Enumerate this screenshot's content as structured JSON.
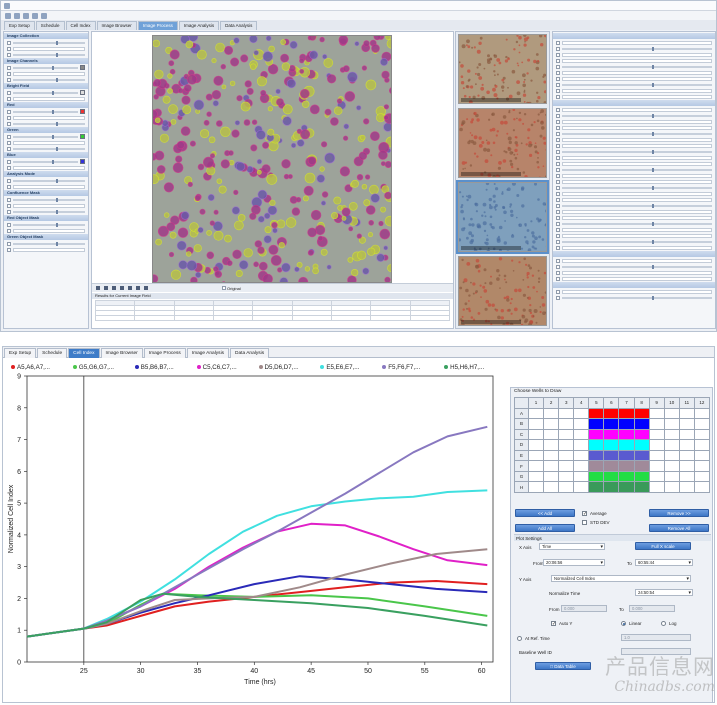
{
  "top_window": {
    "tabs": [
      "Exp Setup",
      "Schedule",
      "Cell Index",
      "Image Browser",
      "Image Process",
      "Image Analysis",
      "Data Analysis"
    ],
    "active_tab": 4,
    "left_panel": {
      "sections": [
        "Image Collection",
        "Image Channels",
        "Bright Field",
        "Red",
        "Green",
        "Blue",
        "Analysis Mode",
        "Confluence Mask",
        "Red Object Mask",
        "Green Object Mask"
      ]
    },
    "thumbnails": [
      {
        "color": "#b09a7e"
      },
      {
        "color": "#b7846a"
      },
      {
        "color": "#7fa0bd"
      },
      {
        "color": "#b18869"
      }
    ],
    "original_label": "Original",
    "table_header": "Results for Current Image Field"
  },
  "bottom_window": {
    "tabs": [
      "Exp Setup",
      "Schedule",
      "Cell Index",
      "Image Browser",
      "Image Process",
      "Image Analysis",
      "Data Analysis"
    ],
    "active_tab": 2,
    "legend": [
      {
        "label": "A5,A6,A7,...",
        "color": "#e02020"
      },
      {
        "label": "G5,G6,G7,...",
        "color": "#4ac64a"
      },
      {
        "label": "B5,B6,B7,...",
        "color": "#2a2ab8"
      },
      {
        "label": "C5,C6,C7,...",
        "color": "#e020c8"
      },
      {
        "label": "D5,D6,D7,...",
        "color": "#a08a8a"
      },
      {
        "label": "E5,E6,E7,...",
        "color": "#40e0e0"
      },
      {
        "label": "F5,F6,F7,...",
        "color": "#8878c0"
      },
      {
        "label": "H5,H6,H7,...",
        "color": "#3aa060"
      }
    ],
    "side": {
      "choose_title": "Choose Wells to Draw",
      "columns": [
        "1",
        "2",
        "3",
        "4",
        "5",
        "6",
        "7",
        "8",
        "9",
        "10",
        "11",
        "12"
      ],
      "rows": [
        "A",
        "B",
        "C",
        "D",
        "E",
        "F",
        "G",
        "H"
      ],
      "row_colors": [
        "#ff0000",
        "#0000ff",
        "#ff00ff",
        "#00ffff",
        "#5a5ad0",
        "#a08a9a",
        "#22dd44",
        "#3a9a5a"
      ],
      "add_label": "<< Add",
      "add_all_label": "Add All",
      "remove_label": "Remove >>",
      "remove_all_label": "Remove All",
      "average_label": "Average",
      "std_dev_label": "STD DEV",
      "plot_settings": "Plot Settings",
      "x_axis_label": "X Axis",
      "x_axis_value": "Time",
      "full_x_scale": "Full X scale",
      "from_label": "From",
      "from_value": "20:06:56",
      "to_label": "To",
      "to_value": "60:55:44",
      "y_axis_label": "Y Axis",
      "y_axis_value": "Normalized Cell Index",
      "normalize_time_label": "Normalize Time",
      "normalize_time_value": "24:50:54",
      "y_from_value": "0.000",
      "y_to_value": "0.000",
      "auto_y_label": "Auto Y",
      "linear_label": "Linear",
      "log_label": "Log",
      "at_ref_time_label": "At Ref. Time",
      "ref_value": "1.0",
      "baseline_well_label": "Baseline Well ID",
      "data_table_label": "Data Table"
    }
  },
  "chart_data": {
    "type": "line",
    "xlabel": "Time (hrs)",
    "ylabel": "Normalized Cell Index",
    "xlim": [
      20,
      61
    ],
    "ylim": [
      0,
      9
    ],
    "xticks": [
      25,
      30,
      35,
      40,
      45,
      50,
      55,
      60
    ],
    "yticks": [
      0,
      1,
      2,
      3,
      4,
      5,
      6,
      7,
      8,
      9
    ],
    "reference_x": 25,
    "series": [
      {
        "name": "A5,A6,A7,...",
        "color": "#e02020",
        "x": [
          20,
          22,
          25,
          27,
          30,
          33,
          36,
          40,
          44,
          48,
          52,
          56,
          60.5
        ],
        "y": [
          0.8,
          0.9,
          1.05,
          1.15,
          1.45,
          1.75,
          1.9,
          2.05,
          2.2,
          2.35,
          2.5,
          2.55,
          2.45
        ]
      },
      {
        "name": "G5,G6,G7,...",
        "color": "#4ac64a",
        "x": [
          20,
          22,
          25,
          27,
          30,
          32,
          35,
          40,
          45,
          50,
          55,
          60.5
        ],
        "y": [
          0.8,
          0.9,
          1.05,
          1.2,
          1.8,
          2.15,
          2.1,
          2.05,
          2.1,
          2.0,
          1.75,
          1.45
        ]
      },
      {
        "name": "B5,B6,B7,...",
        "color": "#2a2ab8",
        "x": [
          20,
          22,
          25,
          27,
          30,
          33,
          36,
          40,
          44,
          48,
          52,
          56,
          60.5
        ],
        "y": [
          0.8,
          0.9,
          1.05,
          1.2,
          1.55,
          1.85,
          2.1,
          2.45,
          2.7,
          2.6,
          2.45,
          2.3,
          2.2
        ]
      },
      {
        "name": "C5,C6,C7,...",
        "color": "#e020c8",
        "x": [
          20,
          22,
          25,
          27,
          30,
          33,
          36,
          39,
          42,
          45,
          48,
          51,
          54,
          57,
          60.5
        ],
        "y": [
          0.8,
          0.9,
          1.05,
          1.3,
          1.75,
          2.3,
          3.0,
          3.6,
          4.1,
          4.35,
          4.3,
          3.95,
          3.55,
          3.2,
          3.05
        ]
      },
      {
        "name": "D5,D6,D7,...",
        "color": "#a08a8a",
        "x": [
          20,
          22,
          25,
          27,
          30,
          33,
          36,
          40,
          44,
          48,
          52,
          56,
          60.5
        ],
        "y": [
          0.8,
          0.9,
          1.05,
          1.2,
          1.6,
          1.95,
          2.0,
          2.05,
          2.35,
          2.75,
          3.1,
          3.4,
          3.55
        ]
      },
      {
        "name": "E5,E6,E7,...",
        "color": "#40e0e0",
        "x": [
          20,
          22,
          25,
          27,
          30,
          33,
          36,
          39,
          42,
          45,
          48,
          51,
          54,
          57,
          60.5
        ],
        "y": [
          0.8,
          0.9,
          1.05,
          1.35,
          1.9,
          2.6,
          3.4,
          4.1,
          4.6,
          4.9,
          5.05,
          5.15,
          5.2,
          5.35,
          5.4
        ]
      },
      {
        "name": "F5,F6,F7,...",
        "color": "#8878c0",
        "x": [
          20,
          22,
          25,
          27,
          30,
          33,
          36,
          39,
          42,
          45,
          48,
          51,
          54,
          57,
          60.5
        ],
        "y": [
          0.8,
          0.9,
          1.05,
          1.3,
          1.75,
          2.35,
          2.95,
          3.55,
          4.1,
          4.7,
          5.3,
          5.95,
          6.6,
          7.1,
          7.4
        ]
      },
      {
        "name": "H5,H6,H7,...",
        "color": "#3aa060",
        "x": [
          20,
          22,
          25,
          27,
          30,
          32,
          35,
          40,
          45,
          50,
          55,
          60.5
        ],
        "y": [
          0.8,
          0.9,
          1.05,
          1.25,
          1.95,
          2.15,
          2.05,
          1.95,
          1.85,
          1.7,
          1.45,
          1.15
        ]
      }
    ]
  },
  "watermark": {
    "line1": "产品信息网",
    "line2": "Chinadbs.com"
  }
}
